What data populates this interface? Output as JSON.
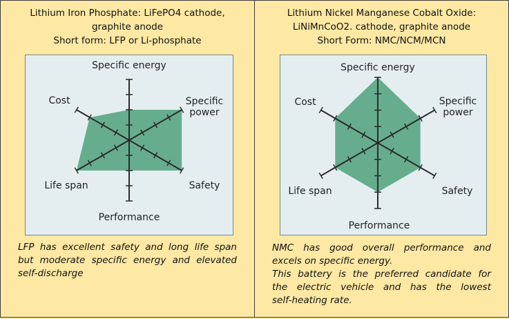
{
  "left": {
    "header": [
      "Lithium Iron Phosphate: LiFePO4 cathode,",
      "graphite anode",
      "Short form: LFP or Li-phosphate"
    ],
    "caption": [
      "LFP has excellent safety and long life span",
      "but moderate specific energy and elevated",
      "self-discharge"
    ]
  },
  "right": {
    "header": [
      "Lithium Nickel Manganese Cobalt Oxide:",
      "LiNiMnCoO2. cathode, graphite anode",
      "Short Form: NMC/NCM/MCN"
    ],
    "caption": [
      "NMC has good overall performance and",
      "excels on specific energy.",
      "This battery is the preferred candidate for",
      "the electric vehicle and has the lowest",
      "self-heating rate."
    ]
  },
  "chart_data": [
    {
      "type": "radar",
      "axes": [
        "Specific energy",
        "Specific power",
        "Safety",
        "Performance",
        "Life span",
        "Cost"
      ],
      "axis_labels": [
        "Specific energy",
        "Specific\npower",
        "Safety",
        "Performance",
        "Life span",
        "Cost"
      ],
      "scale_max": 4,
      "values": [
        2,
        4,
        4,
        2,
        4,
        3
      ],
      "fill_color": "#66ad8e",
      "axis_color": "#2a2a2a"
    },
    {
      "type": "radar",
      "axes": [
        "Specific energy",
        "Specific power",
        "Safety",
        "Performance",
        "Life span",
        "Cost"
      ],
      "axis_labels": [
        "Specific energy",
        "Specific\npower",
        "Safety",
        "Performance",
        "Life span",
        "Cost"
      ],
      "scale_max": 4,
      "values": [
        4,
        3,
        3,
        3,
        3,
        3
      ],
      "fill_color": "#66ad8e",
      "axis_color": "#2a2a2a"
    }
  ]
}
